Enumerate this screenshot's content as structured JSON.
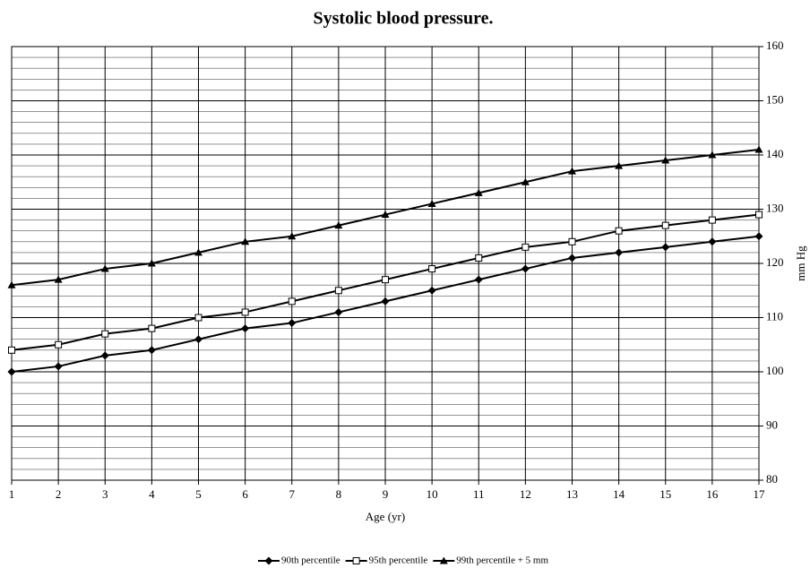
{
  "chart_data": {
    "type": "line",
    "title": "Systolic blood pressure.",
    "x_label": "Age (yr)",
    "y_label": "mm Hg",
    "x": [
      1,
      2,
      3,
      4,
      5,
      6,
      7,
      8,
      9,
      10,
      11,
      12,
      13,
      14,
      15,
      16,
      17
    ],
    "xlim": [
      1,
      17
    ],
    "xticks": [
      1,
      2,
      3,
      4,
      5,
      6,
      7,
      8,
      9,
      10,
      11,
      12,
      13,
      14,
      15,
      16,
      17
    ],
    "ylim": [
      80,
      160
    ],
    "yticks": [
      80,
      90,
      100,
      110,
      120,
      130,
      140,
      150,
      160
    ],
    "y_minor_step": 2,
    "y_axis_side": "right",
    "grid": true,
    "legend": "bottom",
    "series": [
      {
        "name": "90th percentile",
        "color": "#000000",
        "marker": "diamond",
        "values": [
          100,
          101,
          103,
          104,
          106,
          108,
          109,
          111,
          113,
          115,
          117,
          119,
          121,
          122,
          123,
          124,
          125
        ]
      },
      {
        "name": "95th percentile",
        "color": "#000000",
        "marker": "square-open",
        "values": [
          104,
          105,
          107,
          108,
          110,
          111,
          113,
          115,
          117,
          119,
          121,
          123,
          124,
          126,
          127,
          128,
          129
        ]
      },
      {
        "name": "99th percentile + 5 mm",
        "color": "#000000",
        "marker": "triangle",
        "values": [
          116,
          117,
          119,
          120,
          122,
          124,
          125,
          127,
          129,
          131,
          133,
          135,
          137,
          138,
          139,
          140,
          141
        ]
      }
    ]
  }
}
